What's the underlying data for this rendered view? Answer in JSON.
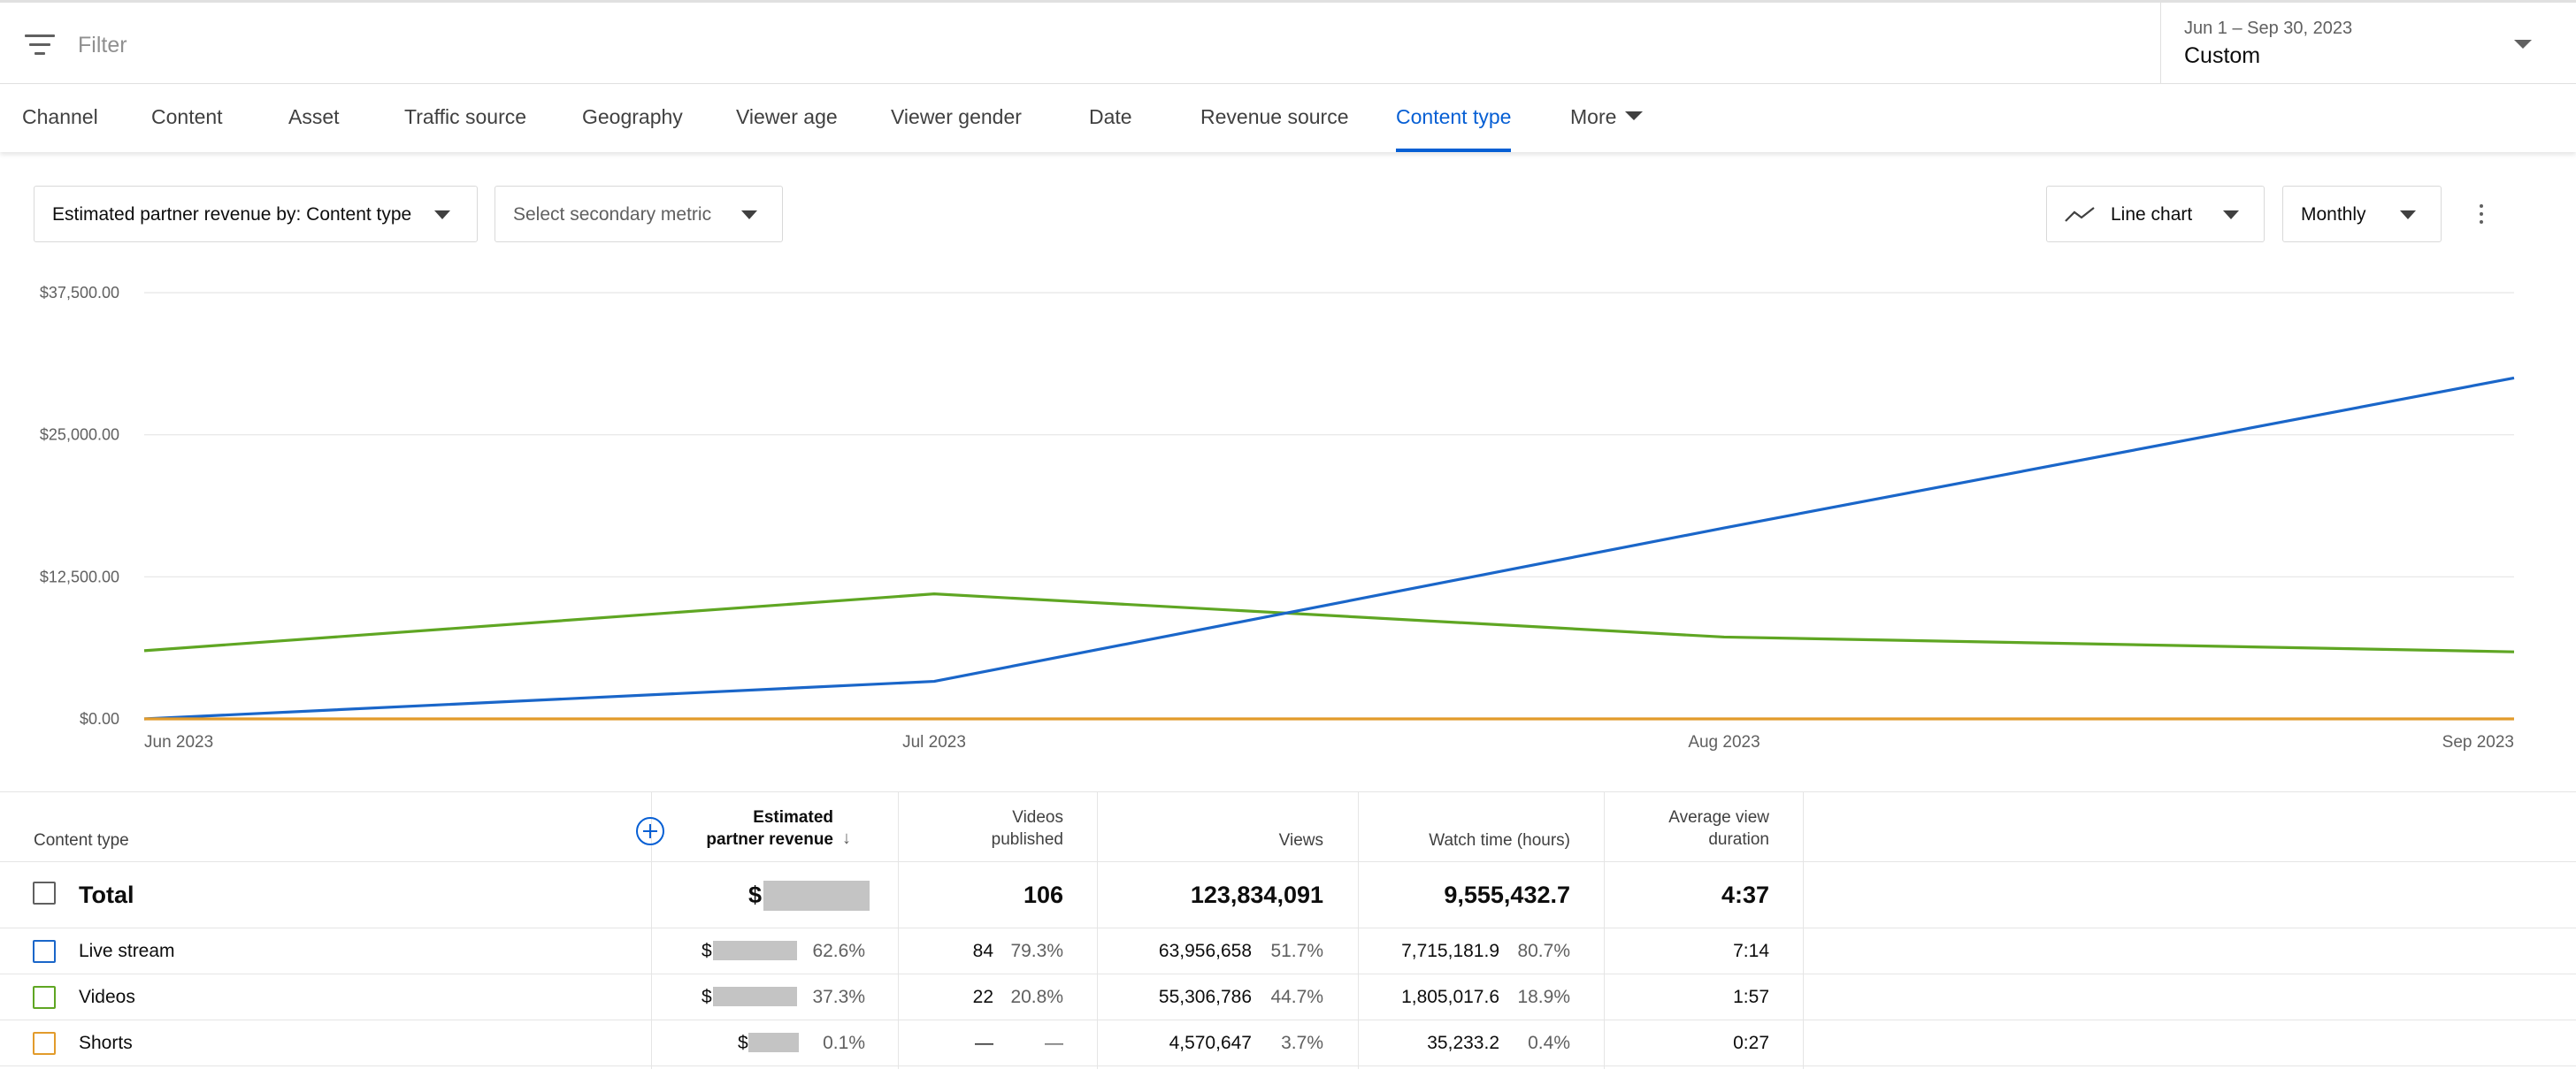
{
  "filter_bar": {
    "placeholder": "Filter",
    "icon": "filter-icon",
    "date_range": "Jun 1 – Sep 30, 2023",
    "date_mode": "Custom"
  },
  "tabs": [
    {
      "label": "Channel"
    },
    {
      "label": "Content"
    },
    {
      "label": "Asset"
    },
    {
      "label": "Traffic source"
    },
    {
      "label": "Geography"
    },
    {
      "label": "Viewer age"
    },
    {
      "label": "Viewer gender"
    },
    {
      "label": "Date"
    },
    {
      "label": "Revenue source"
    },
    {
      "label": "Content type",
      "active": true
    },
    {
      "label": "More"
    }
  ],
  "controls": {
    "primary_metric": "Estimated partner revenue by: Content type",
    "secondary_metric": "Select secondary metric",
    "chart_type": "Line chart",
    "interval": "Monthly"
  },
  "colors": {
    "accent": "#065fd4",
    "live_stream": "#1a66c9",
    "videos": "#5fa623",
    "shorts": "#e29b2b"
  },
  "chart_data": {
    "type": "line",
    "x": [
      "Jun 2023",
      "Jul 2023",
      "Aug 2023",
      "Sep 2023"
    ],
    "ylim": [
      0,
      37500
    ],
    "yticks": [
      "$0.00",
      "$12,500.00",
      "$25,000.00",
      "$37,500.00"
    ],
    "ytick_values": [
      0,
      12500,
      25000,
      37500
    ],
    "grid": true,
    "series": [
      {
        "name": "Videos",
        "color": "#5fa623",
        "values": [
          6000,
          11000,
          7200,
          5900
        ]
      },
      {
        "name": "Live stream",
        "color": "#1a66c9",
        "values": [
          0,
          3300,
          16800,
          30000
        ]
      },
      {
        "name": "Shorts",
        "color": "#e29b2b",
        "values": [
          0,
          0,
          0,
          0
        ]
      }
    ]
  },
  "table": {
    "columns": {
      "content_type": "Content type",
      "revenue_line1": "Estimated",
      "revenue_line2": "partner revenue",
      "videos_line1": "Videos",
      "videos_line2": "published",
      "views": "Views",
      "watch_time": "Watch time (hours)",
      "avd_line1": "Average view",
      "avd_line2": "duration"
    },
    "total": {
      "label": "Total",
      "revenue_prefix": "$",
      "videos": "106",
      "views": "123,834,091",
      "watch_time": "9,555,432.7",
      "avd": "4:37"
    },
    "rows": [
      {
        "label": "Live stream",
        "color": "#1a66c9",
        "revenue_prefix": "$",
        "revenue_pct": "62.6%",
        "videos": "84",
        "videos_pct": "79.3%",
        "views": "63,956,658",
        "views_pct": "51.7%",
        "watch_time": "7,715,181.9",
        "watch_pct": "80.7%",
        "avd": "7:14"
      },
      {
        "label": "Videos",
        "color": "#5fa623",
        "revenue_prefix": "$",
        "revenue_pct": "37.3%",
        "videos": "22",
        "videos_pct": "20.8%",
        "views": "55,306,786",
        "views_pct": "44.7%",
        "watch_time": "1,805,017.6",
        "watch_pct": "18.9%",
        "avd": "1:57"
      },
      {
        "label": "Shorts",
        "color": "#e29b2b",
        "revenue_prefix": "$",
        "revenue_pct": "0.1%",
        "videos": "—",
        "videos_pct": "—",
        "views": "4,570,647",
        "views_pct": "3.7%",
        "watch_time": "35,233.2",
        "watch_pct": "0.4%",
        "avd": "0:27"
      }
    ]
  }
}
